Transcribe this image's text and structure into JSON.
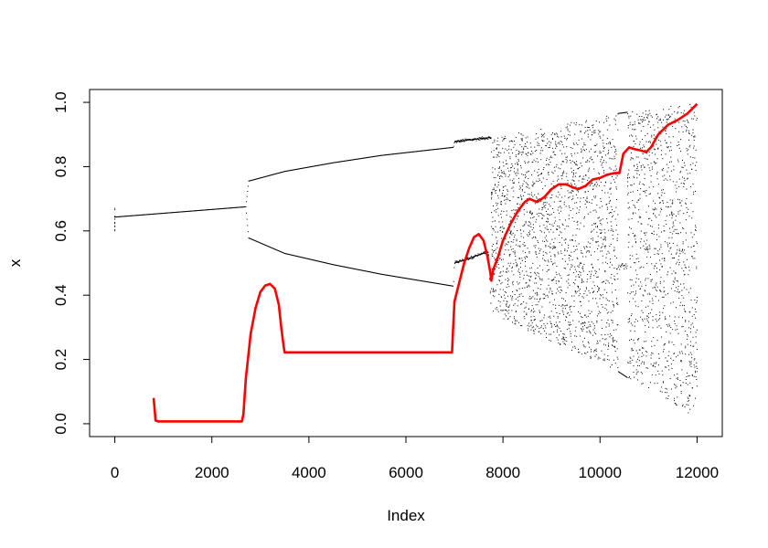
{
  "chart_data": {
    "type": "scatter",
    "title": "",
    "xlabel": "Index",
    "ylabel": "x",
    "xlim": [
      -520,
      12520
    ],
    "ylim": [
      -0.04,
      1.04
    ],
    "x_ticks": [
      0,
      2000,
      4000,
      6000,
      8000,
      10000,
      12000
    ],
    "x_tick_labels": [
      "0",
      "2000",
      "4000",
      "6000",
      "8000",
      "10000",
      "12000"
    ],
    "y_ticks": [
      0.0,
      0.2,
      0.4,
      0.6,
      0.8,
      1.0
    ],
    "y_tick_labels": [
      "0.0",
      "0.2",
      "0.4",
      "0.6",
      "0.8",
      "1.0"
    ],
    "grid": false,
    "legend": "none",
    "scatter_series": {
      "color": "#000000",
      "description_points": {
        "x": [
          0,
          2700,
          2760,
          3500,
          4500,
          5500,
          6500,
          6980,
          7000,
          7300,
          7700,
          7760,
          8000,
          9000,
          10000,
          10350,
          10600,
          11000,
          12000
        ],
        "branch_upper": [
          0.643,
          0.675,
          0.755,
          0.785,
          0.812,
          0.835,
          0.852,
          0.86,
          0.877,
          0.883,
          0.89,
          0.89,
          0.897,
          0.925,
          0.955,
          0.965,
          0.97,
          0.978,
          1.0
        ],
        "branch_lower": [
          0.643,
          0.675,
          0.578,
          0.53,
          0.495,
          0.465,
          0.44,
          0.428,
          0.5,
          0.515,
          0.535,
          0.35,
          0.325,
          0.255,
          0.19,
          0.165,
          0.14,
          0.11,
          0.015
        ]
      }
    },
    "series": [
      {
        "color": "#ff0000",
        "x": [
          800,
          840,
          900,
          2620,
          2650,
          2700,
          2800,
          2900,
          3000,
          3100,
          3200,
          3300,
          3380,
          3430,
          3480,
          3500,
          6950,
          6970,
          7000,
          7100,
          7200,
          7300,
          7400,
          7500,
          7600,
          7680,
          7740,
          7760,
          7800,
          7900,
          8000,
          8150,
          8300,
          8450,
          8550,
          8700,
          8850,
          9000,
          9150,
          9300,
          9450,
          9550,
          9700,
          9850,
          10000,
          10150,
          10300,
          10400,
          10480,
          10600,
          10700,
          10850,
          10950,
          11050,
          11200,
          11400,
          11600,
          11800,
          12000
        ],
        "y": [
          0.08,
          0.01,
          0.007,
          0.007,
          0.03,
          0.14,
          0.28,
          0.36,
          0.41,
          0.43,
          0.435,
          0.42,
          0.37,
          0.3,
          0.24,
          0.222,
          0.222,
          0.29,
          0.38,
          0.44,
          0.5,
          0.545,
          0.58,
          0.59,
          0.57,
          0.52,
          0.47,
          0.445,
          0.48,
          0.52,
          0.57,
          0.62,
          0.66,
          0.69,
          0.7,
          0.69,
          0.705,
          0.73,
          0.745,
          0.745,
          0.735,
          0.73,
          0.74,
          0.76,
          0.765,
          0.775,
          0.78,
          0.78,
          0.84,
          0.86,
          0.855,
          0.85,
          0.845,
          0.86,
          0.9,
          0.93,
          0.945,
          0.965,
          0.995
        ]
      }
    ]
  }
}
